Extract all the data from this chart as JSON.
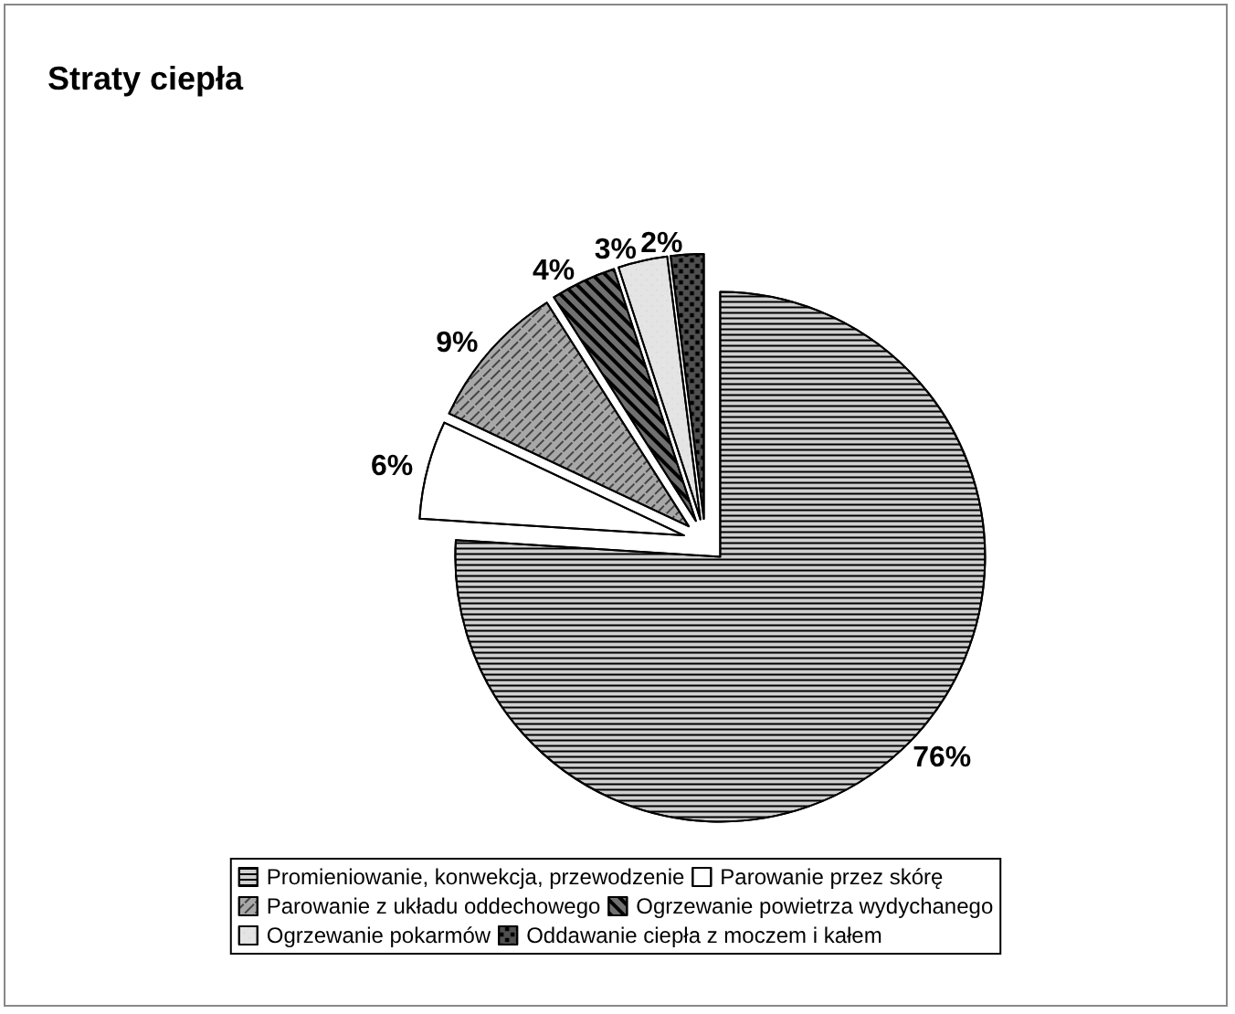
{
  "chart_data": {
    "type": "pie",
    "title": "Straty ciepła",
    "categories": [
      "Promieniowanie, konwekcja, przewodzenie",
      "Parowanie przez skórę",
      "Parowanie z układu oddechowego",
      "Ogrzewanie powietrza wydychanego",
      "Ogrzewanie pokarmów",
      "Oddawanie ciepła z moczem i kałem"
    ],
    "values": [
      76,
      6,
      9,
      4,
      3,
      2
    ],
    "value_labels": [
      "76%",
      "6%",
      "9%",
      "4%",
      "3%",
      "2%"
    ],
    "colors": [
      "#d0d0d0",
      "#ffffff",
      "#a8a8a8",
      "#707070",
      "#e4e4e4",
      "#505050"
    ],
    "legend": "bottom"
  }
}
